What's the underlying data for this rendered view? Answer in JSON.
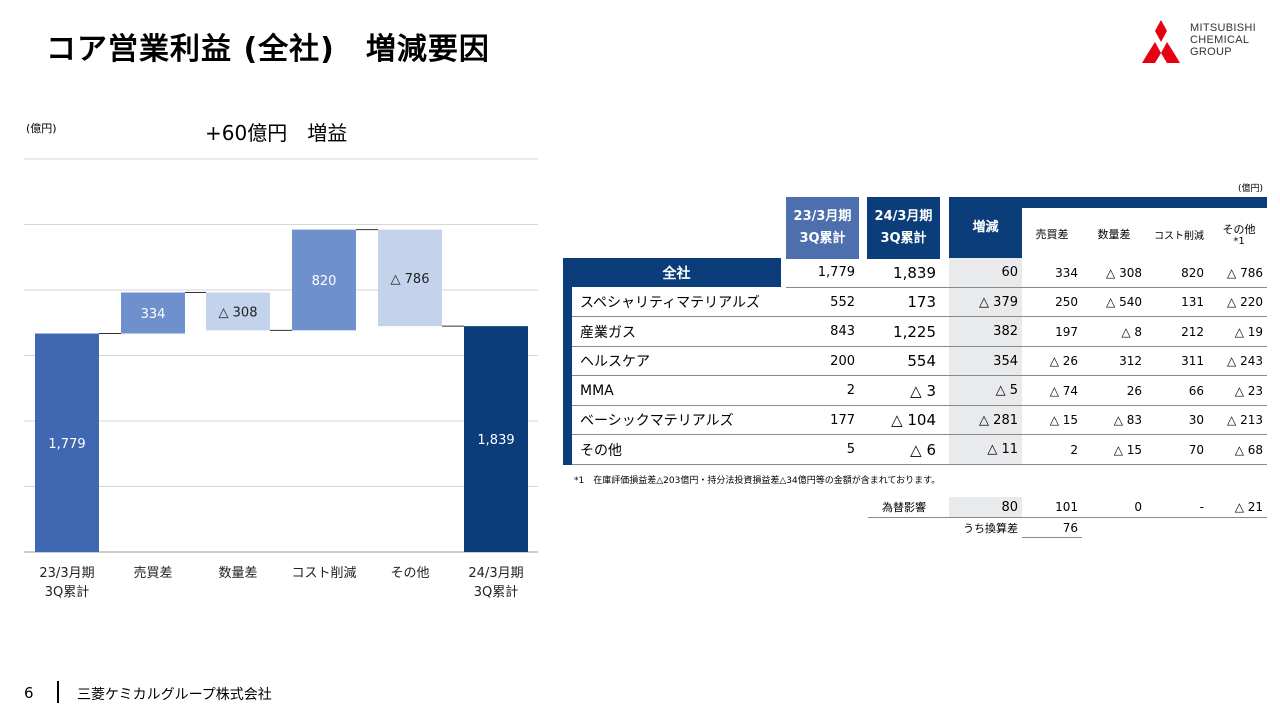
{
  "page": {
    "title": "コア営業利益 (全社)　増減要因",
    "number": "6",
    "company": "三菱ケミカルグループ株式会社"
  },
  "logo": {
    "lines": [
      "MITSUBISHI",
      "CHEMICAL",
      "GROUP"
    ],
    "mark_color": "#e60012"
  },
  "chart": {
    "unit": "(億円)",
    "headline": "+60億円　増益"
  },
  "chart_data": {
    "type": "bar",
    "subtype": "waterfall",
    "categories": [
      "23/3月期\n3Q累計",
      "売買差",
      "数量差",
      "コスト削減",
      "その他",
      "24/3月期\n3Q累計"
    ],
    "values": [
      1779,
      334,
      -308,
      820,
      -786,
      1839
    ],
    "value_labels": [
      "1,779",
      "334",
      "△ 308",
      "820",
      "△ 786",
      "1,839"
    ],
    "title": "+60億円　増益",
    "ylabel": "(億円)",
    "ylim": [
      0,
      3200
    ],
    "grid": true,
    "colors": [
      "#4068b2",
      "#6e90cc",
      "#c3d3ec",
      "#6e90cc",
      "#c3d3ec",
      "#0a3d7a"
    ]
  },
  "table": {
    "unit": "(億円)",
    "headers": {
      "prev": [
        "23/3月期",
        "3Q累計"
      ],
      "curr": [
        "24/3月期",
        "3Q累計"
      ],
      "diff": "増減",
      "factors": [
        "売買差",
        "数量差",
        "コスト削減",
        "その他"
      ],
      "factor_note": "*1"
    },
    "rows": [
      {
        "label": "全社",
        "prev": "1,779",
        "curr": "1,839",
        "diff": "60",
        "f1": "334",
        "f2": "△ 308",
        "f3": "820",
        "f4": "△ 786"
      },
      {
        "label": "スペシャリティマテリアルズ",
        "prev": "552",
        "curr": "173",
        "diff": "△ 379",
        "f1": "250",
        "f2": "△ 540",
        "f3": "131",
        "f4": "△ 220"
      },
      {
        "label": "産業ガス",
        "prev": "843",
        "curr": "1,225",
        "diff": "382",
        "f1": "197",
        "f2": "△ 8",
        "f3": "212",
        "f4": "△ 19"
      },
      {
        "label": "ヘルスケア",
        "prev": "200",
        "curr": "554",
        "diff": "354",
        "f1": "△ 26",
        "f2": "312",
        "f3": "311",
        "f4": "△ 243"
      },
      {
        "label": "MMA",
        "prev": "2",
        "curr": "△ 3",
        "diff": "△ 5",
        "f1": "△ 74",
        "f2": "26",
        "f3": "66",
        "f4": "△ 23"
      },
      {
        "label": "ベーシックマテリアルズ",
        "prev": "177",
        "curr": "△ 104",
        "diff": "△ 281",
        "f1": "△ 15",
        "f2": "△ 83",
        "f3": "30",
        "f4": "△ 213"
      },
      {
        "label": "その他",
        "prev": "5",
        "curr": "△ 6",
        "diff": "△ 11",
        "f1": "2",
        "f2": "△ 15",
        "f3": "70",
        "f4": "△ 68"
      }
    ],
    "note": "*1　在庫評価損益差△203億円・持分法投資損益差△34億円等の金額が含まれております。",
    "fx": {
      "label": "為替影響",
      "diff": "80",
      "f1": "101",
      "f2": "0",
      "f3": "-",
      "f4": "△ 21",
      "sub_label": "うち換算差",
      "sub_value": "76"
    }
  }
}
